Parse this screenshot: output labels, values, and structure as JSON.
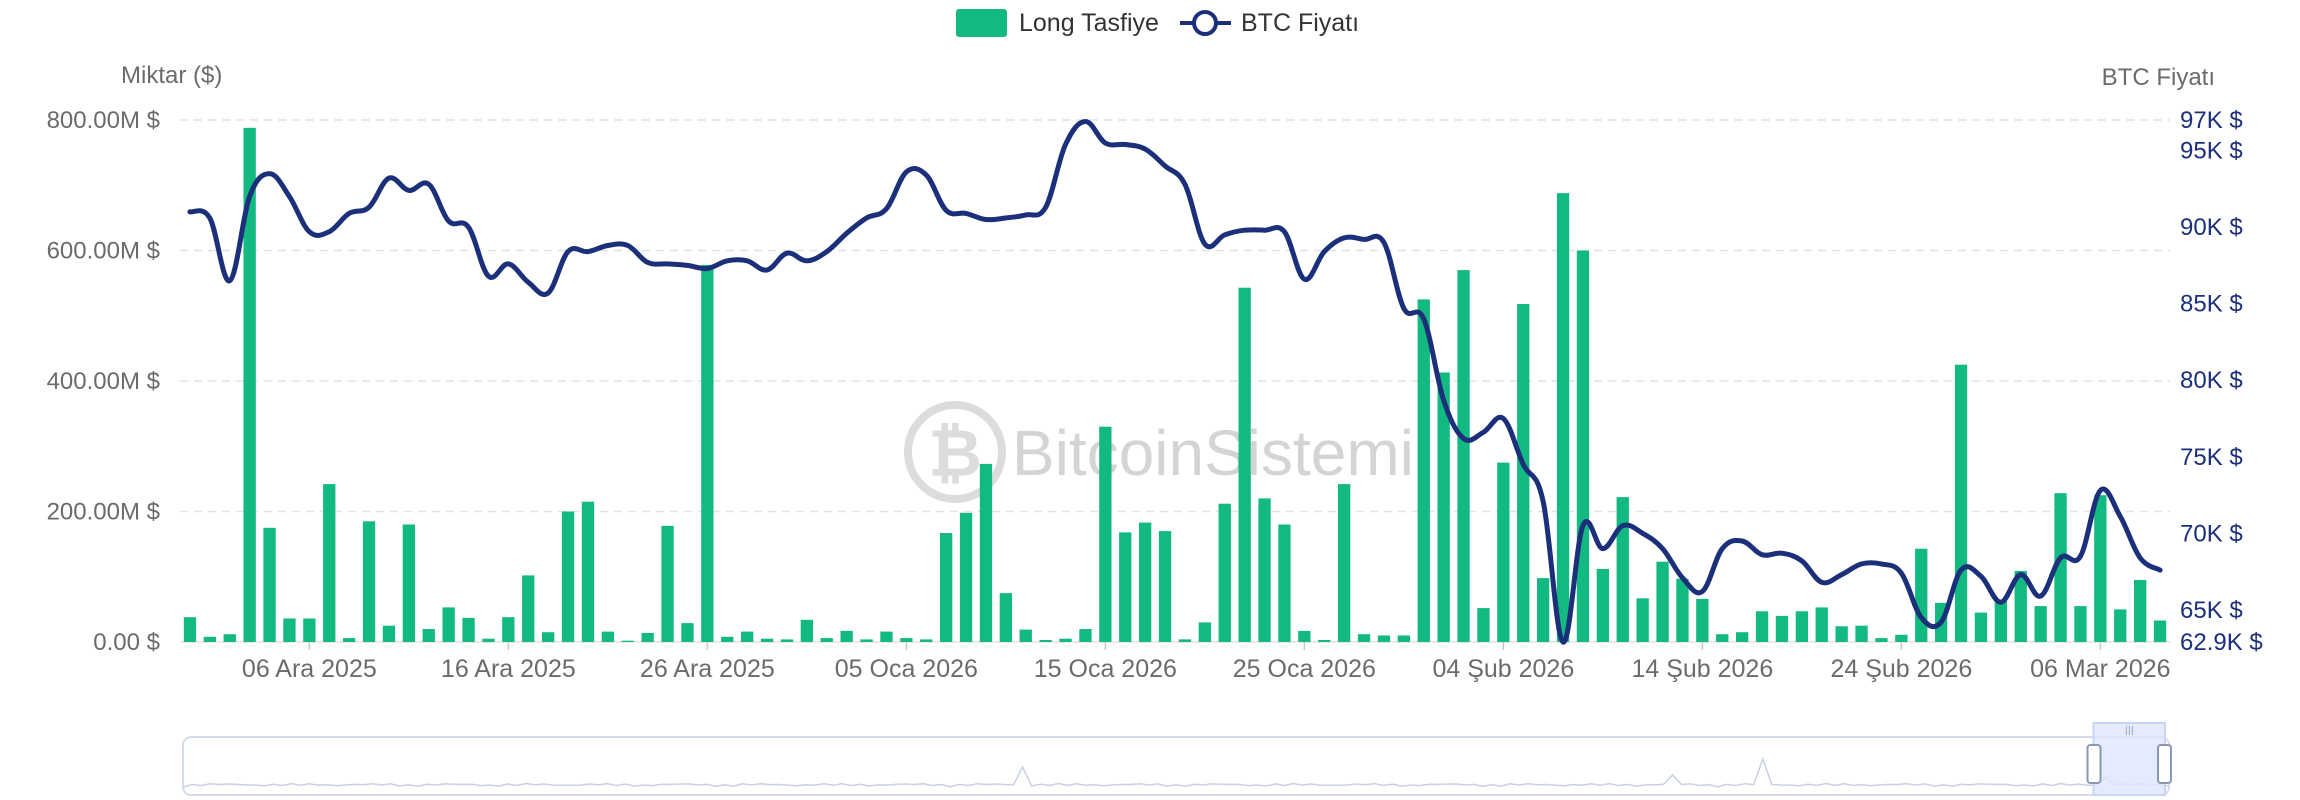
{
  "legend": {
    "liquidation_label": "Long Tasfiye",
    "price_label": "BTC Fiyatı"
  },
  "watermark": "BitcoinSistemi",
  "colors": {
    "bars": "#12b981",
    "price_line": "#1c2f7a",
    "grid": "#e2e2e2",
    "left_ticks": "#6b6b6b",
    "right_ticks": "#1c2f7a"
  },
  "chart_data": {
    "type": "bar",
    "left_axis": {
      "title": "Miktar ($)",
      "range": [
        0,
        800000000
      ],
      "ticks": [
        {
          "value": 0,
          "label": "0.00 $"
        },
        {
          "value": 200000000,
          "label": "200.00M $"
        },
        {
          "value": 400000000,
          "label": "400.00M $"
        },
        {
          "value": 600000000,
          "label": "600.00M $"
        },
        {
          "value": 800000000,
          "label": "800.00M $"
        }
      ]
    },
    "right_axis": {
      "title": "BTC Fiyatı",
      "range": [
        62900,
        97000
      ],
      "ticks": [
        {
          "value": 62900,
          "label": "62.9K $"
        },
        {
          "value": 65000,
          "label": "65K $"
        },
        {
          "value": 70000,
          "label": "70K $"
        },
        {
          "value": 75000,
          "label": "75K $"
        },
        {
          "value": 80000,
          "label": "80K $"
        },
        {
          "value": 85000,
          "label": "85K $"
        },
        {
          "value": 90000,
          "label": "90K $"
        },
        {
          "value": 95000,
          "label": "95K $"
        },
        {
          "value": 97000,
          "label": "97K $"
        }
      ]
    },
    "x_axis_ticks": [
      {
        "date": "2025-12-06",
        "label": "06 Ara 2025"
      },
      {
        "date": "2025-12-16",
        "label": "16 Ara 2025"
      },
      {
        "date": "2025-12-26",
        "label": "26 Ara 2025"
      },
      {
        "date": "2026-01-05",
        "label": "05 Oca 2026"
      },
      {
        "date": "2026-01-15",
        "label": "15 Oca 2026"
      },
      {
        "date": "2026-01-25",
        "label": "25 Oca 2026"
      },
      {
        "date": "2026-02-04",
        "label": "04 Şub 2026"
      },
      {
        "date": "2026-02-14",
        "label": "14 Şub 2026"
      },
      {
        "date": "2026-02-24",
        "label": "24 Şub 2026"
      },
      {
        "date": "2026-03-06",
        "label": "06 Mar 2026"
      }
    ],
    "grid": true,
    "legend_position": "top-center",
    "series": [
      {
        "name": "Long Tasfiye",
        "type": "bar",
        "axis": "left",
        "points": [
          [
            "2025-11-30",
            38000000
          ],
          [
            "2025-12-01",
            8000000
          ],
          [
            "2025-12-02",
            12000000
          ],
          [
            "2025-12-03",
            788000000
          ],
          [
            "2025-12-04",
            175000000
          ],
          [
            "2025-12-05",
            36000000
          ],
          [
            "2025-12-06",
            36000000
          ],
          [
            "2025-12-07",
            242000000
          ],
          [
            "2025-12-08",
            6000000
          ],
          [
            "2025-12-09",
            185000000
          ],
          [
            "2025-12-10",
            25000000
          ],
          [
            "2025-12-11",
            180000000
          ],
          [
            "2025-12-12",
            20000000
          ],
          [
            "2025-12-13",
            53000000
          ],
          [
            "2025-12-14",
            37000000
          ],
          [
            "2025-12-15",
            5000000
          ],
          [
            "2025-12-16",
            38000000
          ],
          [
            "2025-12-17",
            102000000
          ],
          [
            "2025-12-18",
            15000000
          ],
          [
            "2025-12-19",
            200000000
          ],
          [
            "2025-12-20",
            215000000
          ],
          [
            "2025-12-21",
            16000000
          ],
          [
            "2025-12-22",
            2000000
          ],
          [
            "2025-12-23",
            14000000
          ],
          [
            "2025-12-24",
            178000000
          ],
          [
            "2025-12-25",
            29000000
          ],
          [
            "2025-12-26",
            578000000
          ],
          [
            "2025-12-27",
            8000000
          ],
          [
            "2025-12-28",
            16000000
          ],
          [
            "2025-12-29",
            5000000
          ],
          [
            "2025-12-30",
            4000000
          ],
          [
            "2025-12-31",
            34000000
          ],
          [
            "2026-01-01",
            6000000
          ],
          [
            "2026-01-02",
            17000000
          ],
          [
            "2026-01-03",
            4000000
          ],
          [
            "2026-01-04",
            16000000
          ],
          [
            "2026-01-05",
            6000000
          ],
          [
            "2026-01-06",
            4000000
          ],
          [
            "2026-01-07",
            167000000
          ],
          [
            "2026-01-08",
            198000000
          ],
          [
            "2026-01-09",
            273000000
          ],
          [
            "2026-01-10",
            75000000
          ],
          [
            "2026-01-11",
            19000000
          ],
          [
            "2026-01-12",
            3000000
          ],
          [
            "2026-01-13",
            5000000
          ],
          [
            "2026-01-14",
            20000000
          ],
          [
            "2026-01-15",
            330000000
          ],
          [
            "2026-01-16",
            168000000
          ],
          [
            "2026-01-17",
            183000000
          ],
          [
            "2026-01-18",
            170000000
          ],
          [
            "2026-01-19",
            4000000
          ],
          [
            "2026-01-20",
            30000000
          ],
          [
            "2026-01-21",
            212000000
          ],
          [
            "2026-01-22",
            543000000
          ],
          [
            "2026-01-23",
            220000000
          ],
          [
            "2026-01-24",
            180000000
          ],
          [
            "2026-01-25",
            17000000
          ],
          [
            "2026-01-26",
            3000000
          ],
          [
            "2026-01-27",
            242000000
          ],
          [
            "2026-01-28",
            12000000
          ],
          [
            "2026-01-29",
            10000000
          ],
          [
            "2026-01-30",
            10000000
          ],
          [
            "2026-01-31",
            525000000
          ],
          [
            "2026-02-01",
            413000000
          ],
          [
            "2026-02-02",
            570000000
          ],
          [
            "2026-02-03",
            52000000
          ],
          [
            "2026-02-04",
            275000000
          ],
          [
            "2026-02-05",
            518000000
          ],
          [
            "2026-02-06",
            98000000
          ],
          [
            "2026-02-07",
            688000000
          ],
          [
            "2026-02-08",
            600000000
          ],
          [
            "2026-02-09",
            112000000
          ],
          [
            "2026-02-10",
            222000000
          ],
          [
            "2026-02-11",
            67000000
          ],
          [
            "2026-02-12",
            123000000
          ],
          [
            "2026-02-13",
            97000000
          ],
          [
            "2026-02-14",
            66000000
          ],
          [
            "2026-02-15",
            12000000
          ],
          [
            "2026-02-16",
            15000000
          ],
          [
            "2026-02-17",
            47000000
          ],
          [
            "2026-02-18",
            40000000
          ],
          [
            "2026-02-19",
            47000000
          ],
          [
            "2026-02-20",
            53000000
          ],
          [
            "2026-02-21",
            24000000
          ],
          [
            "2026-02-22",
            25000000
          ],
          [
            "2026-02-23",
            6000000
          ],
          [
            "2026-02-24",
            11000000
          ],
          [
            "2026-02-25",
            143000000
          ],
          [
            "2026-02-26",
            60000000
          ],
          [
            "2026-02-27",
            425000000
          ],
          [
            "2026-02-28",
            45000000
          ],
          [
            "2026-03-01",
            63000000
          ],
          [
            "2026-03-02",
            109000000
          ],
          [
            "2026-03-03",
            55000000
          ],
          [
            "2026-03-04",
            228000000
          ],
          [
            "2026-03-05",
            55000000
          ],
          [
            "2026-03-06",
            225000000
          ],
          [
            "2026-03-07",
            50000000
          ],
          [
            "2026-03-08",
            95000000
          ],
          [
            "2026-03-09",
            33000000
          ]
        ]
      },
      {
        "name": "BTC Fiyatı",
        "type": "line",
        "axis": "right",
        "points": [
          [
            "2025-11-30",
            91000
          ],
          [
            "2025-12-01",
            90600
          ],
          [
            "2025-12-02",
            86500
          ],
          [
            "2025-12-03",
            92000
          ],
          [
            "2025-12-04",
            93500
          ],
          [
            "2025-12-05",
            92000
          ],
          [
            "2025-12-06",
            89700
          ],
          [
            "2025-12-07",
            89700
          ],
          [
            "2025-12-08",
            90900
          ],
          [
            "2025-12-09",
            91300
          ],
          [
            "2025-12-10",
            93200
          ],
          [
            "2025-12-11",
            92400
          ],
          [
            "2025-12-12",
            92800
          ],
          [
            "2025-12-13",
            90400
          ],
          [
            "2025-12-14",
            90000
          ],
          [
            "2025-12-15",
            86800
          ],
          [
            "2025-12-16",
            87600
          ],
          [
            "2025-12-17",
            86400
          ],
          [
            "2025-12-18",
            85700
          ],
          [
            "2025-12-19",
            88400
          ],
          [
            "2025-12-20",
            88400
          ],
          [
            "2025-12-21",
            88800
          ],
          [
            "2025-12-22",
            88800
          ],
          [
            "2025-12-23",
            87700
          ],
          [
            "2025-12-24",
            87600
          ],
          [
            "2025-12-25",
            87500
          ],
          [
            "2025-12-26",
            87300
          ],
          [
            "2025-12-27",
            87800
          ],
          [
            "2025-12-28",
            87800
          ],
          [
            "2025-12-29",
            87200
          ],
          [
            "2025-12-30",
            88300
          ],
          [
            "2025-12-31",
            87800
          ],
          [
            "2026-01-01",
            88400
          ],
          [
            "2026-01-02",
            89600
          ],
          [
            "2026-01-03",
            90600
          ],
          [
            "2026-01-04",
            91200
          ],
          [
            "2026-01-05",
            93600
          ],
          [
            "2026-01-06",
            93400
          ],
          [
            "2026-01-07",
            91100
          ],
          [
            "2026-01-08",
            90900
          ],
          [
            "2026-01-09",
            90500
          ],
          [
            "2026-01-10",
            90600
          ],
          [
            "2026-01-11",
            90800
          ],
          [
            "2026-01-12",
            91300
          ],
          [
            "2026-01-13",
            95400
          ],
          [
            "2026-01-14",
            96900
          ],
          [
            "2026-01-15",
            95500
          ],
          [
            "2026-01-16",
            95400
          ],
          [
            "2026-01-17",
            95100
          ],
          [
            "2026-01-18",
            94000
          ],
          [
            "2026-01-19",
            92800
          ],
          [
            "2026-01-20",
            88900
          ],
          [
            "2026-01-21",
            89500
          ],
          [
            "2026-01-22",
            89800
          ],
          [
            "2026-01-23",
            89800
          ],
          [
            "2026-01-24",
            89700
          ],
          [
            "2026-01-25",
            86600
          ],
          [
            "2026-01-26",
            88400
          ],
          [
            "2026-01-27",
            89300
          ],
          [
            "2026-01-28",
            89200
          ],
          [
            "2026-01-29",
            89000
          ],
          [
            "2026-01-30",
            84700
          ],
          [
            "2026-01-31",
            84000
          ],
          [
            "2026-02-01",
            78700
          ],
          [
            "2026-02-02",
            76200
          ],
          [
            "2026-02-03",
            76600
          ],
          [
            "2026-02-04",
            77500
          ],
          [
            "2026-02-05",
            74500
          ],
          [
            "2026-02-06",
            72100
          ],
          [
            "2026-02-07",
            62900
          ],
          [
            "2026-02-08",
            70500
          ],
          [
            "2026-02-09",
            69000
          ],
          [
            "2026-02-10",
            70500
          ],
          [
            "2026-02-11",
            70000
          ],
          [
            "2026-02-12",
            69000
          ],
          [
            "2026-02-13",
            67100
          ],
          [
            "2026-02-14",
            66200
          ],
          [
            "2026-02-15",
            69000
          ],
          [
            "2026-02-16",
            69500
          ],
          [
            "2026-02-17",
            68600
          ],
          [
            "2026-02-18",
            68700
          ],
          [
            "2026-02-19",
            68200
          ],
          [
            "2026-02-20",
            66800
          ],
          [
            "2026-02-21",
            67300
          ],
          [
            "2026-02-22",
            68000
          ],
          [
            "2026-02-23",
            68000
          ],
          [
            "2026-02-24",
            67400
          ],
          [
            "2026-02-25",
            64500
          ],
          [
            "2026-02-26",
            64200
          ],
          [
            "2026-02-27",
            67600
          ],
          [
            "2026-02-28",
            67200
          ],
          [
            "2026-03-01",
            65500
          ],
          [
            "2026-03-02",
            67300
          ],
          [
            "2026-03-03",
            65900
          ],
          [
            "2026-03-04",
            68400
          ],
          [
            "2026-03-05",
            68500
          ],
          [
            "2026-03-06",
            72800
          ],
          [
            "2026-03-07",
            71100
          ],
          [
            "2026-03-08",
            68400
          ],
          [
            "2026-03-09",
            67600
          ]
        ]
      }
    ]
  },
  "navigator": {
    "selected_range_fraction": [
      0.962,
      0.998
    ]
  }
}
